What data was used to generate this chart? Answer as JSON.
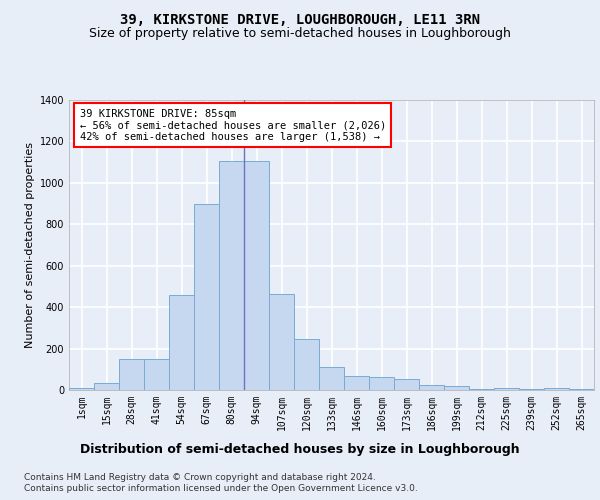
{
  "title": "39, KIRKSTONE DRIVE, LOUGHBOROUGH, LE11 3RN",
  "subtitle": "Size of property relative to semi-detached houses in Loughborough",
  "xlabel": "Distribution of semi-detached houses by size in Loughborough",
  "ylabel": "Number of semi-detached properties",
  "annotation_title": "39 KIRKSTONE DRIVE: 85sqm",
  "annotation_line2": "← 56% of semi-detached houses are smaller (2,026)",
  "annotation_line3": "42% of semi-detached houses are larger (1,538) →",
  "footer_line1": "Contains HM Land Registry data © Crown copyright and database right 2024.",
  "footer_line2": "Contains public sector information licensed under the Open Government Licence v3.0.",
  "categories": [
    "1sqm",
    "15sqm",
    "28sqm",
    "41sqm",
    "54sqm",
    "67sqm",
    "80sqm",
    "94sqm",
    "107sqm",
    "120sqm",
    "133sqm",
    "146sqm",
    "160sqm",
    "173sqm",
    "186sqm",
    "199sqm",
    "212sqm",
    "225sqm",
    "239sqm",
    "252sqm",
    "265sqm"
  ],
  "values": [
    10,
    35,
    150,
    150,
    460,
    900,
    1105,
    1105,
    465,
    245,
    110,
    70,
    65,
    55,
    25,
    20,
    5,
    12,
    5,
    12,
    5
  ],
  "bar_color": "#c5d8f0",
  "bar_edge_color": "#7aaad4",
  "annotation_box_color": "white",
  "annotation_box_edge": "red",
  "background_color": "#e8eef8",
  "plot_background": "#e8eef8",
  "grid_color": "white",
  "vline_color": "#7070c0",
  "ylim": [
    0,
    1400
  ],
  "yticks": [
    0,
    200,
    400,
    600,
    800,
    1000,
    1200,
    1400
  ],
  "title_fontsize": 10,
  "subtitle_fontsize": 9,
  "xlabel_fontsize": 9,
  "ylabel_fontsize": 8,
  "tick_fontsize": 7,
  "annotation_fontsize": 7.5,
  "footer_fontsize": 6.5
}
